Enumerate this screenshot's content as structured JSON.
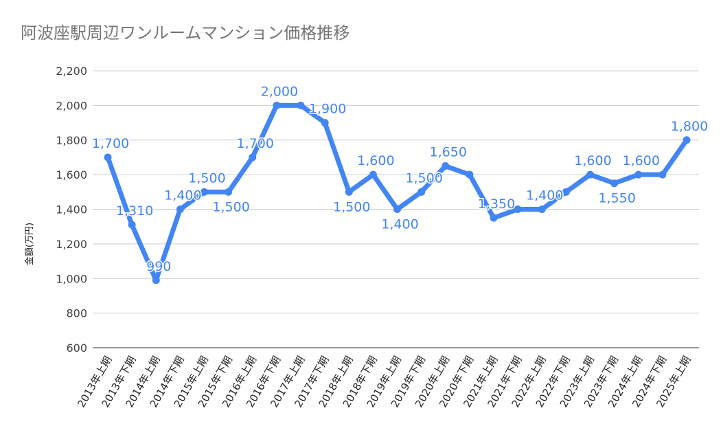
{
  "chart_data": {
    "type": "line",
    "title": "阿波座駅周辺ワンルームマンション価格推移",
    "xlabel": "",
    "ylabel": "金額(万円)",
    "ylim": [
      600,
      2200
    ],
    "yticks": [
      "600",
      "800",
      "1,000",
      "1,200",
      "1,400",
      "1,600",
      "1,800",
      "2,000",
      "2,200"
    ],
    "grid": true,
    "color": "#4285f4",
    "categories": [
      "2013年上期",
      "2013年下期",
      "2014年上期",
      "2014年下期",
      "2015年上期",
      "2015年下期",
      "2016年上期",
      "2016年下期",
      "2017年上期",
      "2017年下期",
      "2018年上期",
      "2018年下期",
      "2019年上期",
      "2019年下期",
      "2020年上期",
      "2020年下期",
      "2021年上期",
      "2021年下期",
      "2022年上期",
      "2022年下期",
      "2023年上期",
      "2023年下期",
      "2024年上期",
      "2024年下期",
      "2025年上期"
    ],
    "values": [
      1700,
      1310,
      990,
      1400,
      1500,
      1500,
      1700,
      2000,
      2000,
      1900,
      1500,
      1600,
      1400,
      1500,
      1650,
      1600,
      1350,
      1400,
      1400,
      1500,
      1600,
      1550,
      1600,
      1600,
      1800
    ],
    "data_labels": [
      "1,700",
      "1,310",
      "990",
      "1,400",
      "1,500",
      "1,500",
      "1,700",
      "2,000",
      null,
      "1,900",
      "1,500",
      "1,600",
      "1,400",
      "1,500",
      "1,650",
      null,
      "1,350",
      null,
      "1,400",
      null,
      "1,600",
      "1,550",
      "1,600",
      null,
      "1,800"
    ]
  }
}
